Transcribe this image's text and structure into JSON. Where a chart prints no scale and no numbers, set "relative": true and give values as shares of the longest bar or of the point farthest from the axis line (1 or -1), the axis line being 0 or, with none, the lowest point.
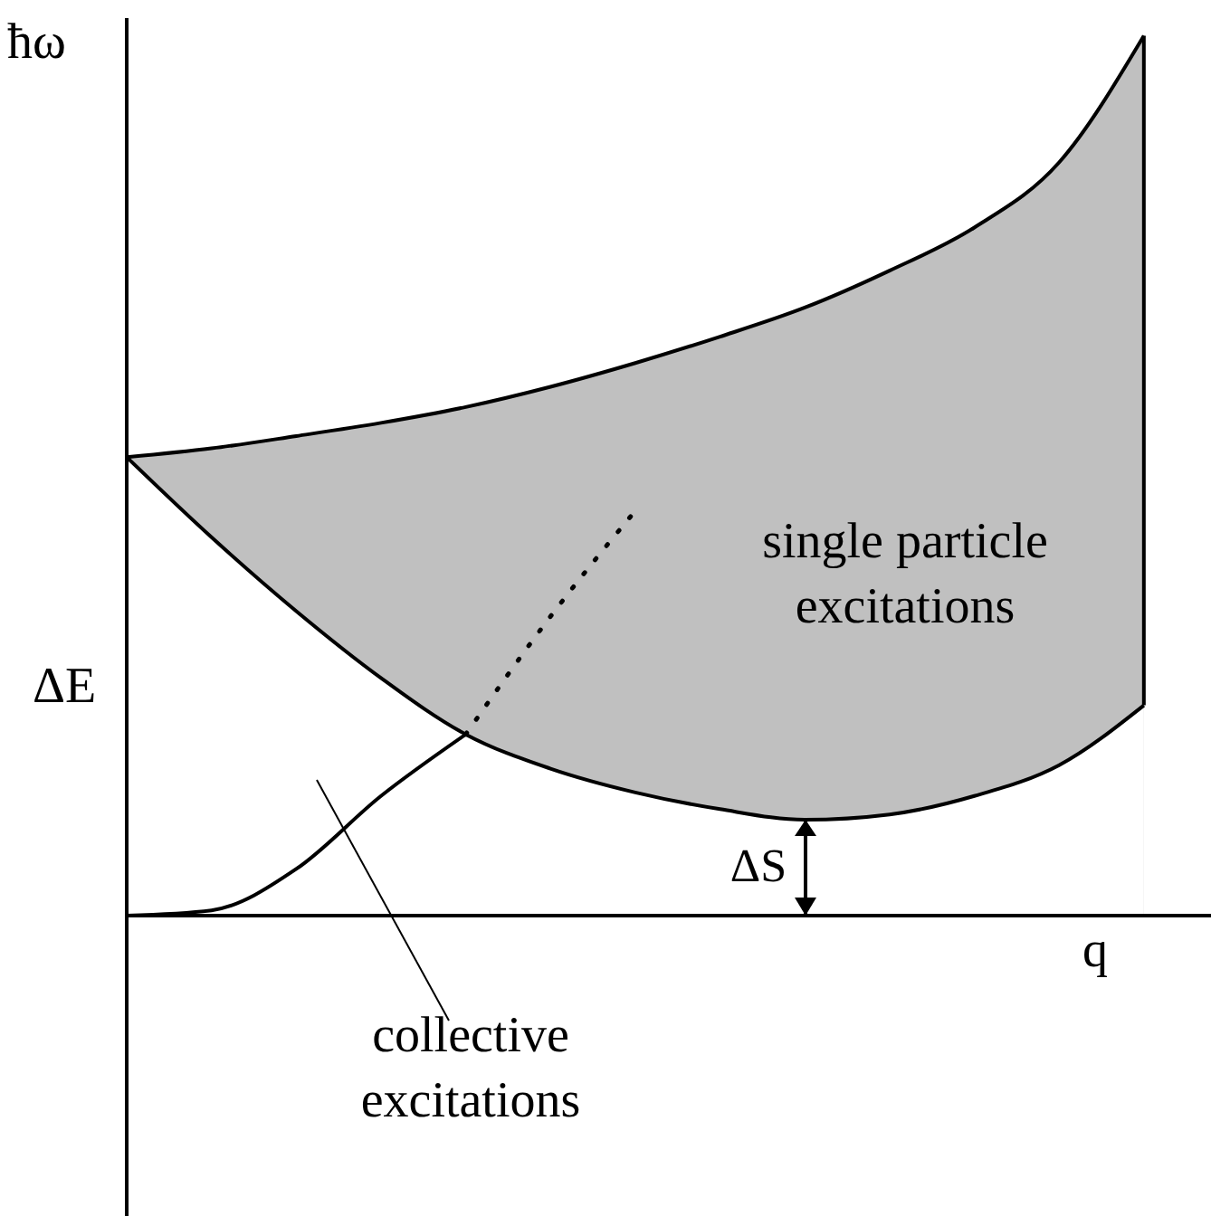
{
  "chart_data": {
    "type": "line",
    "relative": true,
    "xlabel": "q",
    "ylabel": "ħω",
    "categories": [
      null,
      null,
      null,
      null,
      null,
      null,
      null,
      null,
      null,
      null,
      null,
      null,
      null
    ],
    "series": [
      {
        "type": "area",
        "color": "#c0c0c0",
        "values": [
          0.521,
          0.531,
          0.545,
          0.56,
          0.578,
          0.601,
          0.628,
          0.658,
          0.691,
          0.733,
          0.782,
          0.856,
          1
        ]
      },
      {
        "type": "area",
        "color": "#ffffff",
        "values": [
          0.521,
          0.43,
          0.346,
          0.27,
          0.206,
          0.167,
          0.14,
          0.121,
          0.109,
          0.115,
          0.136,
          0.171,
          0.239
        ]
      },
      {
        "color": "#000000",
        "values": [
          0,
          0.006,
          0.053,
          0.136,
          0.206,
          null,
          null,
          null,
          null,
          null,
          null,
          null,
          null
        ]
      },
      {
        "color": "#000000",
        "line_style": "dotted",
        "values": [
          null,
          null,
          null,
          null,
          0.206,
          0.34,
          0.46,
          null,
          null,
          null,
          null,
          null,
          null
        ]
      }
    ],
    "annotations": [
      "ΔE",
      "ΔS",
      "single particle excitations",
      "collective excitations"
    ]
  }
}
